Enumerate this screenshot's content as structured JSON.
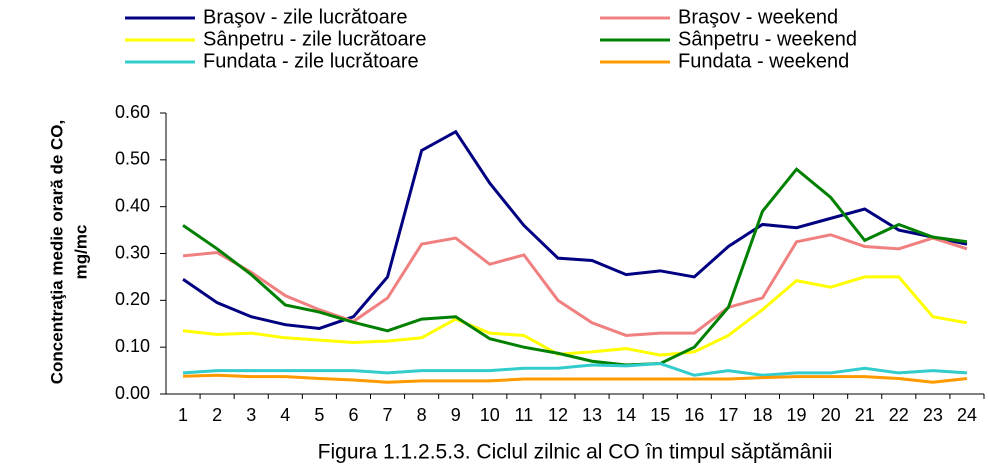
{
  "chart_data": {
    "type": "line",
    "y_label": [
      "Concentraţia medie orară de CO,",
      "mg/mc"
    ],
    "caption": "Figura 1.1.2.5.3. Ciclul zilnic al CO în timpul săptămânii",
    "categories": [
      "1",
      "2",
      "3",
      "4",
      "5",
      "6",
      "7",
      "8",
      "9",
      "10",
      "11",
      "12",
      "13",
      "14",
      "15",
      "16",
      "17",
      "18",
      "19",
      "20",
      "21",
      "22",
      "23",
      "24"
    ],
    "ylim": [
      0,
      0.6
    ],
    "yticks": [
      {
        "value": 0,
        "label": "0.00"
      },
      {
        "value": 0.1,
        "label": "0.10"
      },
      {
        "value": 0.2,
        "label": "0.20"
      },
      {
        "value": 0.3,
        "label": "0.30"
      },
      {
        "value": 0.4,
        "label": "0.40"
      },
      {
        "value": 0.5,
        "label": "0.50"
      },
      {
        "value": 0.6,
        "label": "0.60"
      }
    ],
    "grid": false,
    "series": [
      {
        "name": "Braşov - zile lucrătoare",
        "color": "#000080",
        "values": [
          0.245,
          0.195,
          0.165,
          0.148,
          0.14,
          0.165,
          0.25,
          0.52,
          0.56,
          0.45,
          0.36,
          0.29,
          0.285,
          0.255,
          0.263,
          0.25,
          0.315,
          0.362,
          0.355,
          0.375,
          0.395,
          0.35,
          0.335,
          0.32
        ]
      },
      {
        "name": "Braşov - weekend",
        "color": "#f08080",
        "values": [
          0.295,
          0.302,
          0.26,
          0.21,
          0.18,
          0.155,
          0.205,
          0.32,
          0.333,
          0.277,
          0.297,
          0.2,
          0.152,
          0.125,
          0.13,
          0.13,
          0.185,
          0.205,
          0.325,
          0.34,
          0.315,
          0.31,
          0.333,
          0.31
        ]
      },
      {
        "name": "Sânpetru - zile lucrătoare",
        "color": "#ffff00",
        "values": [
          0.135,
          0.127,
          0.13,
          0.12,
          0.115,
          0.11,
          0.113,
          0.12,
          0.16,
          0.13,
          0.125,
          0.085,
          0.09,
          0.097,
          0.083,
          0.09,
          0.125,
          0.18,
          0.242,
          0.228,
          0.25,
          0.25,
          0.165,
          0.152
        ]
      },
      {
        "name": "Sânpetru - weekend",
        "color": "#008000",
        "values": [
          0.36,
          0.31,
          0.255,
          0.19,
          0.175,
          0.153,
          0.135,
          0.16,
          0.165,
          0.118,
          0.1,
          0.087,
          0.07,
          0.062,
          0.065,
          0.1,
          0.185,
          0.39,
          0.48,
          0.42,
          0.328,
          0.362,
          0.335,
          0.325
        ]
      },
      {
        "name": "Fundata - zile lucrătoare",
        "color": "#33cccc",
        "values": [
          0.045,
          0.05,
          0.05,
          0.05,
          0.05,
          0.05,
          0.045,
          0.05,
          0.05,
          0.05,
          0.055,
          0.055,
          0.062,
          0.06,
          0.065,
          0.04,
          0.05,
          0.04,
          0.045,
          0.045,
          0.055,
          0.045,
          0.05,
          0.045
        ]
      },
      {
        "name": "Fundata - weekend",
        "color": "#ff9900",
        "values": [
          0.038,
          0.04,
          0.037,
          0.037,
          0.033,
          0.03,
          0.025,
          0.028,
          0.028,
          0.028,
          0.032,
          0.032,
          0.032,
          0.032,
          0.032,
          0.032,
          0.032,
          0.035,
          0.037,
          0.037,
          0.037,
          0.033,
          0.025,
          0.033
        ]
      }
    ]
  }
}
